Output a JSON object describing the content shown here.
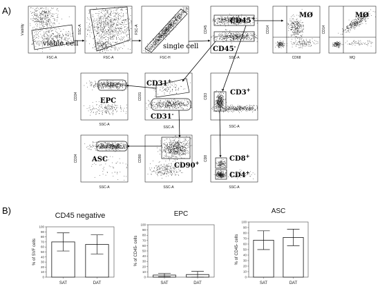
{
  "panel_labels": {
    "a": "A)",
    "b": "B)"
  },
  "flow_plots": {
    "p1": {
      "ylabel": "Viability",
      "xlabel": "FSC-A",
      "gate": "viable cell"
    },
    "p2": {
      "ylabel": "SSC-A",
      "xlabel": "FSC-A"
    },
    "p3": {
      "ylabel": "FSC-A",
      "xlabel": "FSC-H",
      "gate": "single cell"
    },
    "p4": {
      "ylabel": "CD45",
      "xlabel": "SSC-A",
      "gate_pos": "CD45",
      "gate_pos_sup": "+",
      "gate_neg": "CD45",
      "gate_neg_sup": "-"
    },
    "p5": {
      "ylabel": "CD14",
      "xlabel": "CD68",
      "gate": "MØ"
    },
    "p6": {
      "ylabel": "CD14",
      "xlabel": "MQ",
      "gate": "MØ"
    },
    "p7": {
      "ylabel": "CD34",
      "xlabel": "SSC-A",
      "gate": "EPC"
    },
    "p8": {
      "ylabel": "CD31",
      "xlabel": "SSC-A",
      "gate_pos": "CD31",
      "gate_pos_sup": "+",
      "gate_neg": "CD31",
      "gate_neg_sup": "-"
    },
    "p9": {
      "ylabel": "CD3",
      "xlabel": "SSC-A",
      "gate": "CD3",
      "gate_sup": "+"
    },
    "p10": {
      "ylabel": "CD34",
      "xlabel": "SSC-A",
      "gate": "ASC"
    },
    "p11": {
      "ylabel": "CD90",
      "xlabel": "SSC-A",
      "gate": "CD90",
      "gate_sup": "+"
    },
    "p12": {
      "ylabel": "CD8",
      "xlabel": "SSC-A",
      "gate_a": "CD8",
      "gate_a_sup": "+",
      "gate_b": "CD4",
      "gate_b_sup": "+"
    }
  },
  "chart_data": [
    {
      "type": "bar",
      "title": "CD45 negative",
      "ylabel": "% of SVF cells",
      "categories": [
        "SAT",
        "DAT"
      ],
      "values": [
        70,
        65
      ],
      "error": [
        18,
        19
      ],
      "ylim": [
        0,
        100
      ],
      "yticks": [
        "0",
        "10",
        "20",
        "30",
        "40",
        "50",
        "60",
        "70",
        "80",
        "90",
        "100"
      ]
    },
    {
      "type": "bar",
      "title": "EPC",
      "ylabel": "% of CD45- cells",
      "categories": [
        "SAT",
        "DAT"
      ],
      "values": [
        4,
        5
      ],
      "error": [
        3,
        6
      ],
      "ylim": [
        0,
        100
      ],
      "yticks": [
        "0",
        "10",
        "20",
        "30",
        "40",
        "50",
        "60",
        "70",
        "80",
        "90",
        "100"
      ]
    },
    {
      "type": "bar",
      "title": "ASC",
      "ylabel": "% of CD45- cells",
      "categories": [
        "SAT",
        "DAT"
      ],
      "values": [
        67,
        72
      ],
      "error": [
        17,
        15
      ],
      "ylim": [
        0,
        100
      ],
      "yticks": [
        "0",
        "10",
        "20",
        "30",
        "40",
        "50",
        "60",
        "70",
        "80",
        "90",
        "100"
      ]
    }
  ]
}
